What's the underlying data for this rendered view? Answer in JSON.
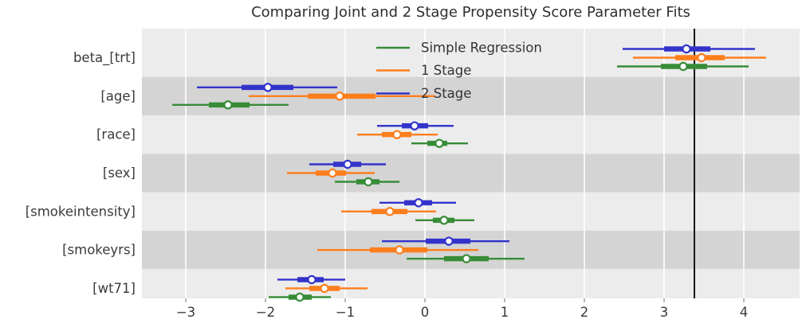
{
  "chart_data": {
    "type": "scatter",
    "subtype": "forest-plot-with-intervals",
    "title": "Comparing Joint and 2 Stage Propensity Score Parameter Fits",
    "categories": [
      "beta_[trt]",
      "[age]",
      "[race]",
      "[sex]",
      "[smokeintensity]",
      "[smokeyrs]",
      "[wt71]"
    ],
    "x_ticks": [
      -3,
      -2,
      -1,
      0,
      1,
      2,
      3,
      4
    ],
    "xlim": [
      -3.55,
      4.7
    ],
    "grid": true,
    "legend_position": "upper-center",
    "reference_line_x": 3.38,
    "series": [
      {
        "name": "Simple Regression",
        "color": "#378c37",
        "row_offset": 1,
        "points": [
          3.24,
          -2.47,
          0.18,
          -0.71,
          0.24,
          0.52,
          -1.57
        ],
        "thick_intervals": [
          [
            2.96,
            3.54
          ],
          [
            -2.71,
            -2.2
          ],
          [
            0.03,
            0.28
          ],
          [
            -0.86,
            -0.57
          ],
          [
            0.1,
            0.37
          ],
          [
            0.24,
            0.8
          ],
          [
            -1.71,
            -1.42
          ]
        ],
        "thin_intervals": [
          [
            2.41,
            4.06
          ],
          [
            -3.17,
            -1.71
          ],
          [
            -0.17,
            0.54
          ],
          [
            -1.13,
            -0.32
          ],
          [
            -0.12,
            0.62
          ],
          [
            -0.23,
            1.25
          ],
          [
            -1.96,
            -1.18
          ]
        ]
      },
      {
        "name": "1 Stage",
        "color": "#fd7e1d",
        "row_offset": 0,
        "points": [
          3.47,
          -1.07,
          -0.35,
          -1.16,
          -0.44,
          -0.32,
          -1.26
        ],
        "thick_intervals": [
          [
            3.14,
            3.76
          ],
          [
            -1.47,
            -0.62
          ],
          [
            -0.54,
            -0.17
          ],
          [
            -1.37,
            -0.99
          ],
          [
            -0.67,
            -0.22
          ],
          [
            -0.69,
            0.03
          ],
          [
            -1.45,
            -1.07
          ]
        ],
        "thin_intervals": [
          [
            2.61,
            4.28
          ],
          [
            -2.21,
            0.13
          ],
          [
            -0.85,
            0.16
          ],
          [
            -1.73,
            -0.63
          ],
          [
            -1.05,
            0.14
          ],
          [
            -1.35,
            0.67
          ],
          [
            -1.75,
            -0.72
          ]
        ]
      },
      {
        "name": "2 Stage",
        "color": "#3333cc",
        "row_offset": -1,
        "points": [
          3.28,
          -1.97,
          -0.13,
          -0.97,
          -0.08,
          0.3,
          -1.42
        ],
        "thick_intervals": [
          [
            3.0,
            3.58
          ],
          [
            -2.3,
            -1.65
          ],
          [
            -0.29,
            0.04
          ],
          [
            -1.15,
            -0.8
          ],
          [
            -0.26,
            0.09
          ],
          [
            0.01,
            0.57
          ],
          [
            -1.6,
            -1.27
          ]
        ],
        "thin_intervals": [
          [
            2.48,
            4.14
          ],
          [
            -2.86,
            -1.1
          ],
          [
            -0.6,
            0.36
          ],
          [
            -1.45,
            -0.49
          ],
          [
            -0.57,
            0.39
          ],
          [
            -0.54,
            1.06
          ],
          [
            -1.85,
            -1.0
          ]
        ]
      }
    ],
    "colors": {
      "band_light": "#ececec",
      "band_dark": "#d4d4d4",
      "grid": "#ffffff",
      "reference": "#000000",
      "tick": "#9a9a9a",
      "text": "#3a3a3a",
      "marker_fill": "#ffffff"
    }
  }
}
